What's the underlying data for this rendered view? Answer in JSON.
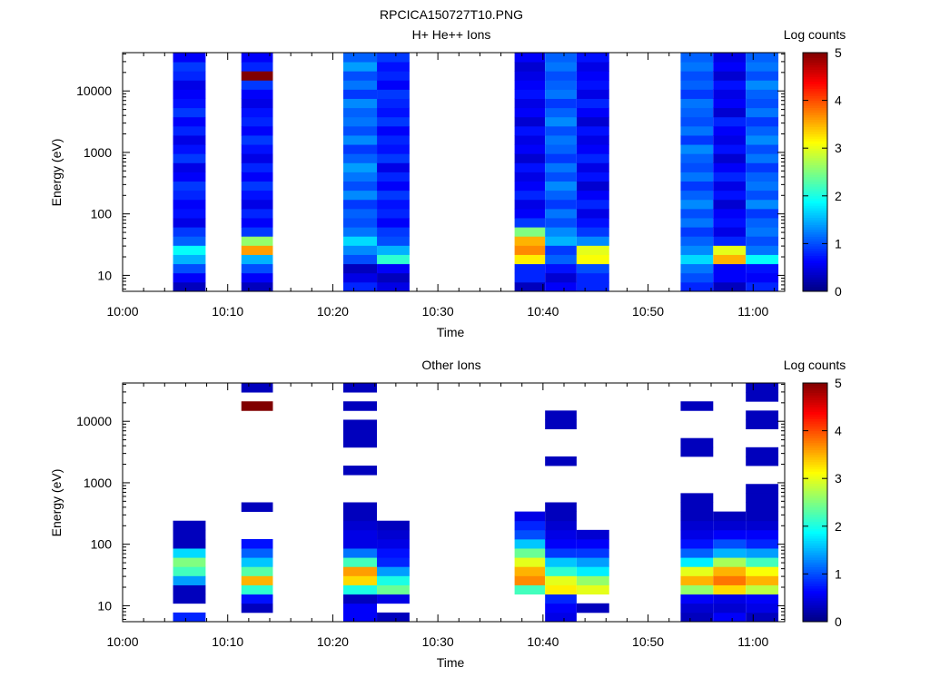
{
  "file_title": "RPCICA150727T10.PNG",
  "chart_data": [
    {
      "type": "heatmap",
      "title": "H+ He++ Ions",
      "xlabel": "Time",
      "ylabel": "Energy (eV)",
      "y_scale": "log",
      "ylim_eV": [
        5.5,
        42000
      ],
      "xlim": [
        "10:00",
        "11:03"
      ],
      "x_ticks": [
        "10:00",
        "10:10",
        "10:20",
        "10:30",
        "10:40",
        "10:50",
        "11:00"
      ],
      "y_ticks": [
        "10",
        "100",
        "1000",
        "10000"
      ],
      "colorbar": {
        "label": "Log counts",
        "range": [
          0,
          5
        ],
        "ticks": [
          "0",
          "1",
          "2",
          "3",
          "4",
          "5"
        ]
      },
      "columns": [
        {
          "start": "10:04.8",
          "end": "10:07.9",
          "levels": [
            0.3,
            0.6,
            1.0,
            1.5,
            1.9,
            1.1,
            0.9,
            0.5,
            0.7,
            0.6,
            0.8,
            0.9,
            0.6,
            0.5,
            0.9,
            0.7,
            0.5,
            0.8,
            0.6,
            0.9,
            0.7,
            0.6,
            0.5,
            0.8,
            0.9,
            0.6
          ]
        },
        {
          "start": "10:11.3",
          "end": "10:14.3",
          "levels": [
            0.3,
            0.6,
            1.0,
            1.5,
            3.6,
            2.6,
            0.9,
            0.6,
            0.8,
            0.5,
            0.7,
            0.9,
            0.6,
            0.8,
            0.5,
            0.7,
            0.9,
            0.6,
            0.8,
            0.7,
            0.5,
            0.6,
            0.9,
            5.0,
            0.8,
            0.6
          ]
        },
        {
          "start": "10:21.0",
          "end": "10:24.2",
          "levels": [
            0.8,
            0.5,
            0.3,
            1.0,
            1.3,
            1.7,
            1.2,
            1.0,
            1.1,
            0.9,
            1.3,
            1.0,
            1.2,
            1.4,
            1.1,
            0.9,
            1.3,
            1.0,
            1.2,
            1.1,
            1.3,
            0.9,
            1.2,
            1.0,
            1.4,
            1.1
          ]
        },
        {
          "start": "10:24.2",
          "end": "10:27.3",
          "levels": [
            0.5,
            0.3,
            0.6,
            2.1,
            1.5,
            1.0,
            0.9,
            0.6,
            0.8,
            0.7,
            0.9,
            0.6,
            0.8,
            0.5,
            0.9,
            0.7,
            0.8,
            0.6,
            0.9,
            0.7,
            0.8,
            0.9,
            0.6,
            0.8,
            0.7,
            0.9
          ]
        },
        {
          "start": "10:37.3",
          "end": "10:40.2",
          "levels": [
            0.3,
            0.8,
            0.8,
            3.2,
            3.7,
            3.5,
            2.5,
            0.9,
            0.6,
            0.5,
            0.8,
            0.6,
            0.5,
            0.7,
            0.4,
            0.6,
            0.5,
            0.7,
            0.4,
            0.6,
            0.5,
            0.7,
            0.6,
            0.5,
            0.4,
            0.6
          ]
        },
        {
          "start": "10:40.2",
          "end": "10:43.2",
          "levels": [
            0.6,
            0.4,
            0.7,
            1.1,
            0.9,
            1.5,
            1.3,
            1.0,
            1.2,
            0.9,
            1.1,
            1.3,
            1.0,
            1.2,
            0.9,
            1.1,
            1.2,
            1.0,
            1.3,
            1.1,
            0.9,
            1.2,
            1.1,
            1.0,
            1.2,
            1.1
          ]
        },
        {
          "start": "10:43.2",
          "end": "10:46.3",
          "levels": [
            0.8,
            0.8,
            1.0,
            3.1,
            3.0,
            1.3,
            0.9,
            0.7,
            0.5,
            0.8,
            0.6,
            0.4,
            0.7,
            0.5,
            0.8,
            0.6,
            0.5,
            0.7,
            0.4,
            0.6,
            0.8,
            0.5,
            0.7,
            0.6,
            0.5,
            0.7
          ]
        },
        {
          "start": "10:53.1",
          "end": "10:56.2",
          "levels": [
            0.8,
            1.0,
            1.2,
            1.7,
            1.3,
            1.1,
            0.9,
            1.2,
            1.0,
            1.3,
            1.1,
            0.9,
            1.2,
            1.0,
            1.1,
            1.3,
            0.9,
            1.2,
            1.0,
            1.1,
            1.2,
            0.9,
            1.1,
            1.0,
            1.2,
            1.1
          ]
        },
        {
          "start": "10:56.2",
          "end": "10:59.3",
          "levels": [
            0.3,
            0.6,
            0.6,
            3.5,
            3.0,
            0.8,
            0.5,
            0.7,
            0.6,
            0.4,
            0.7,
            0.5,
            0.8,
            0.6,
            0.4,
            0.7,
            0.5,
            0.6,
            0.8,
            0.4,
            0.6,
            0.5,
            0.7,
            0.4,
            0.6,
            0.5
          ]
        },
        {
          "start": "10:59.3",
          "end": "11:02.4",
          "levels": [
            0.8,
            0.6,
            0.7,
            1.9,
            1.2,
            1.0,
            1.2,
            1.1,
            0.9,
            1.3,
            1.0,
            1.2,
            1.1,
            0.9,
            1.2,
            1.0,
            1.3,
            1.1,
            0.9,
            1.2,
            1.0,
            1.1,
            1.3,
            1.0,
            1.2,
            1.1
          ]
        }
      ]
    },
    {
      "type": "heatmap",
      "title": "Other Ions",
      "xlabel": "Time",
      "ylabel": "Energy (eV)",
      "y_scale": "log",
      "ylim_eV": [
        5.5,
        42000
      ],
      "xlim": [
        "10:00",
        "11:03"
      ],
      "x_ticks": [
        "10:00",
        "10:10",
        "10:20",
        "10:30",
        "10:40",
        "10:50",
        "11:00"
      ],
      "y_ticks": [
        "10",
        "100",
        "1000",
        "10000"
      ],
      "colorbar": {
        "label": "Log counts",
        "range": [
          0,
          5
        ],
        "ticks": [
          "0",
          "1",
          "2",
          "3",
          "4",
          "5"
        ]
      },
      "columns": [
        {
          "start": "10:04.8",
          "end": "10:07.9",
          "levels": [
            0.8,
            null,
            0.3,
            0.3,
            1.4,
            2.2,
            2.5,
            1.7,
            0.3,
            0.3,
            0.3,
            null,
            null,
            null,
            null,
            null,
            null,
            null,
            null,
            null,
            null,
            null,
            null,
            null,
            null,
            null
          ]
        },
        {
          "start": "10:11.3",
          "end": "10:14.3",
          "levels": [
            null,
            0.3,
            0.7,
            2.1,
            3.5,
            2.3,
            1.6,
            1.1,
            0.7,
            null,
            null,
            null,
            0.3,
            null,
            null,
            null,
            null,
            null,
            null,
            null,
            null,
            null,
            null,
            5.0,
            null,
            0.3
          ]
        },
        {
          "start": "10:21.0",
          "end": "10:24.2",
          "levels": [
            0.6,
            0.6,
            0.3,
            2.0,
            3.3,
            3.6,
            2.2,
            1.2,
            0.5,
            0.5,
            0.4,
            0.3,
            0.3,
            null,
            null,
            null,
            0.3,
            null,
            null,
            0.3,
            0.3,
            0.3,
            null,
            0.3,
            null,
            0.3
          ]
        },
        {
          "start": "10:24.2",
          "end": "10:27.3",
          "levels": [
            0.3,
            null,
            0.5,
            2.4,
            2.0,
            1.4,
            0.8,
            0.7,
            0.5,
            0.4,
            0.3,
            null,
            null,
            null,
            null,
            null,
            null,
            null,
            null,
            null,
            null,
            null,
            null,
            null,
            null,
            null
          ]
        },
        {
          "start": "10:37.3",
          "end": "10:40.2",
          "levels": [
            null,
            null,
            null,
            2.2,
            3.7,
            3.5,
            3.0,
            2.4,
            1.6,
            1.0,
            0.8,
            0.5,
            null,
            null,
            null,
            null,
            null,
            null,
            null,
            null,
            null,
            null,
            null,
            null,
            null,
            null
          ]
        },
        {
          "start": "10:40.2",
          "end": "10:43.2",
          "levels": [
            0.5,
            0.6,
            0.8,
            3.2,
            3.0,
            2.1,
            1.6,
            0.9,
            0.6,
            0.5,
            0.4,
            0.3,
            0.3,
            null,
            null,
            null,
            null,
            0.3,
            null,
            null,
            null,
            0.3,
            0.3,
            null,
            null,
            null
          ]
        },
        {
          "start": "10:43.2",
          "end": "10:46.3",
          "levels": [
            null,
            0.3,
            null,
            3.0,
            2.6,
            1.8,
            1.4,
            0.9,
            0.6,
            0.4,
            null,
            null,
            null,
            null,
            null,
            null,
            null,
            null,
            null,
            null,
            null,
            null,
            null,
            null,
            null,
            null
          ]
        },
        {
          "start": "10:53.1",
          "end": "10:56.2",
          "levels": [
            0.3,
            0.4,
            0.6,
            2.6,
            3.5,
            3.0,
            1.8,
            1.1,
            0.7,
            0.5,
            0.4,
            0.3,
            0.3,
            0.3,
            null,
            null,
            null,
            null,
            0.3,
            0.3,
            null,
            null,
            null,
            0.3,
            null,
            null
          ]
        },
        {
          "start": "10:56.2",
          "end": "10:59.3",
          "levels": [
            0.6,
            0.4,
            0.5,
            3.3,
            3.8,
            3.5,
            2.7,
            1.5,
            1.0,
            0.6,
            0.4,
            0.3,
            null,
            null,
            null,
            null,
            null,
            null,
            null,
            null,
            null,
            null,
            null,
            null,
            null,
            null
          ]
        },
        {
          "start": "10:59.3",
          "end": "11:02.4",
          "levels": [
            0.3,
            0.5,
            0.6,
            2.8,
            3.5,
            3.1,
            2.2,
            1.4,
            0.8,
            0.6,
            0.4,
            0.3,
            0.3,
            0.3,
            0.3,
            null,
            null,
            0.3,
            0.3,
            null,
            null,
            0.3,
            0.3,
            null,
            0.3,
            0.3
          ]
        }
      ]
    }
  ]
}
